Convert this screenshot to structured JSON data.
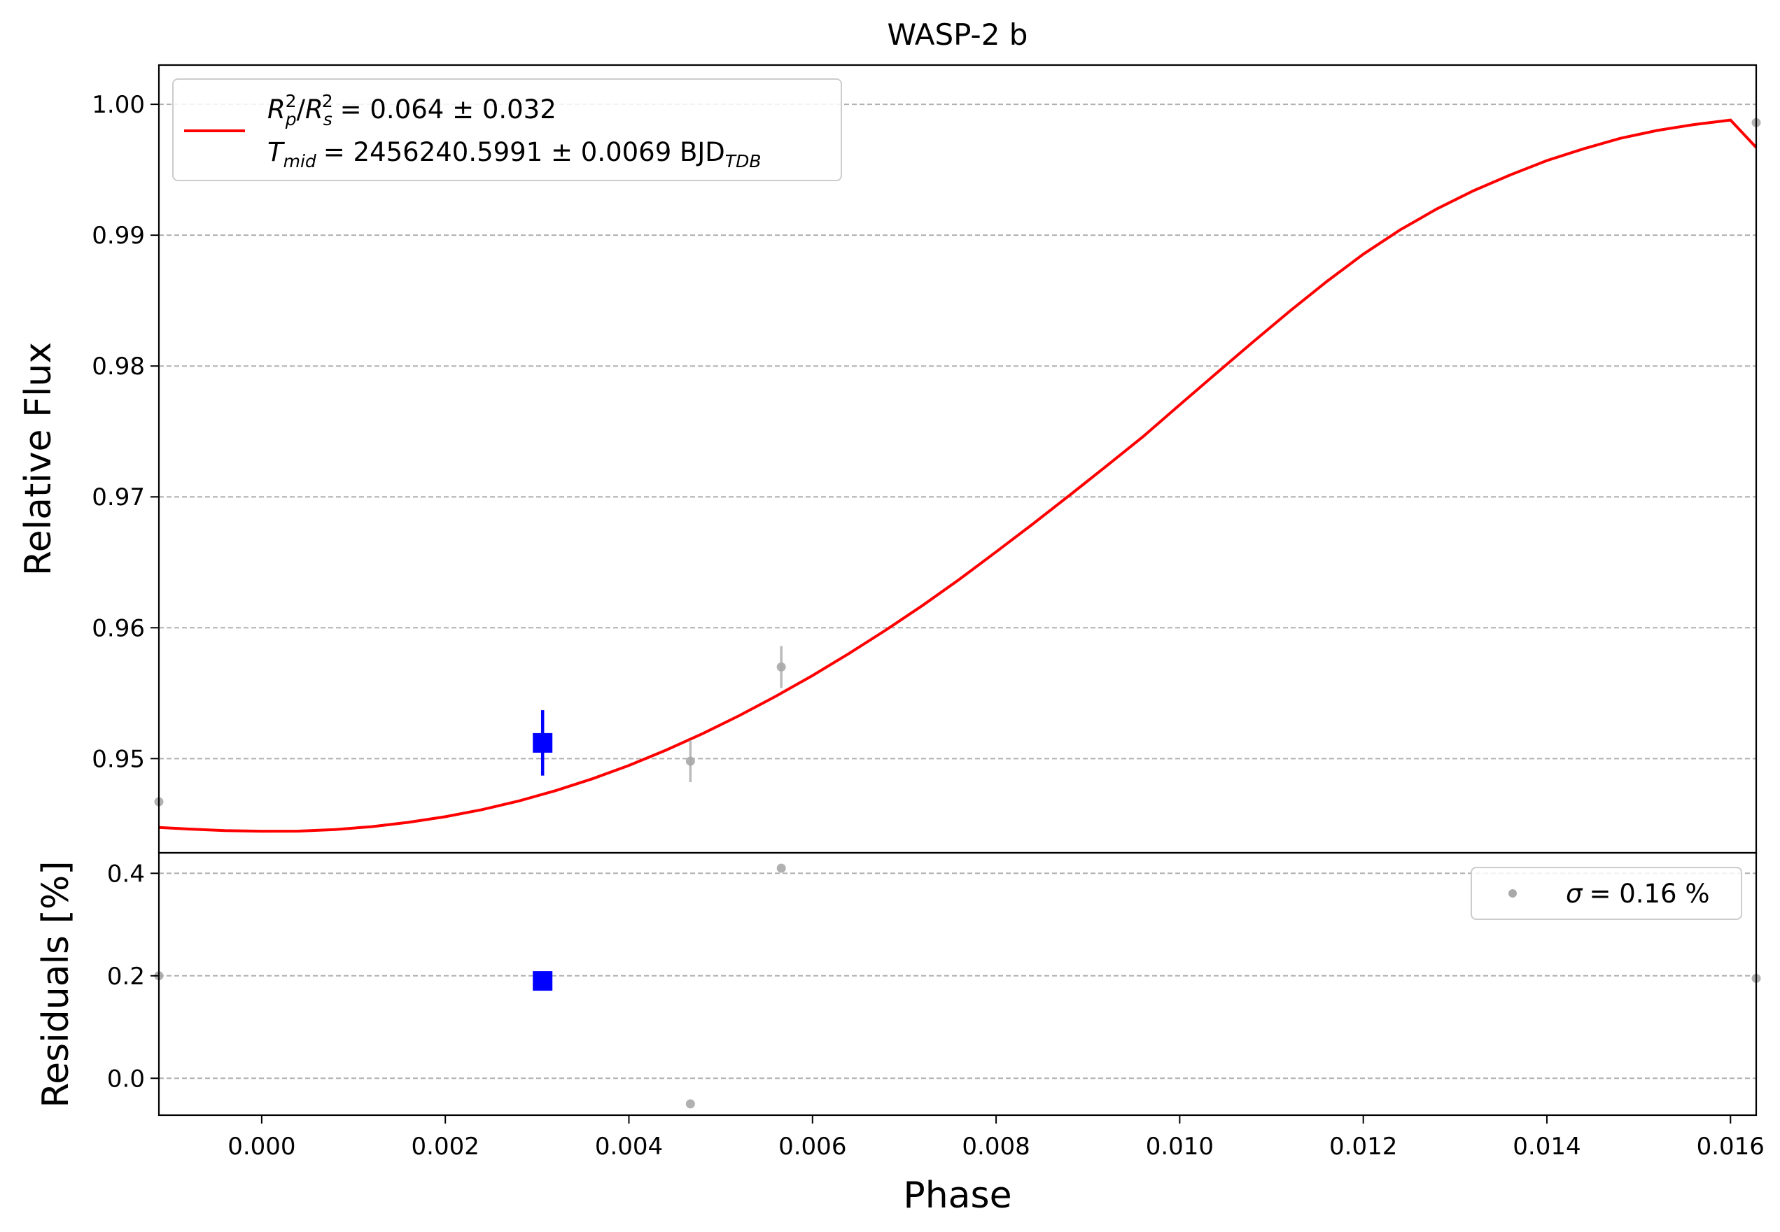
{
  "chart_data": {
    "type": "scatter",
    "title": "WASP-2 b",
    "xlabel": "Phase",
    "top_panel": {
      "ylabel": "Relative Flux",
      "xlim": [
        -0.00112,
        0.01628
      ],
      "ylim": [
        0.9428,
        1.003
      ],
      "yticks": [
        0.95,
        0.96,
        0.97,
        0.98,
        0.99,
        1.0
      ],
      "ytick_labels": [
        "0.95",
        "0.96",
        "0.97",
        "0.98",
        "0.99",
        "1.00"
      ],
      "grid": "y-dashed",
      "legend_location": "upper-left",
      "legend": {
        "line_color": "#ff0000",
        "rp_label": "R",
        "rp_sub": "p",
        "rp_sup": "2",
        "rs_label": "R",
        "rs_sub": "s",
        "rs_sup": "2",
        "rp_rs_value": "= 0.064 ± 0.032",
        "tmid_label": "T",
        "tmid_sub": "mid",
        "tmid_value": "= 2456240.5991 ± 0.0069 BJD",
        "tmid_unit_sub": "TDB"
      },
      "model_curve": {
        "color": "#ff0000",
        "points": [
          [
            -0.00112,
            0.94474
          ],
          [
            -0.0008,
            0.94462
          ],
          [
            -0.0004,
            0.9445
          ],
          [
            0.0,
            0.94445
          ],
          [
            0.0004,
            0.94446
          ],
          [
            0.0008,
            0.94458
          ],
          [
            0.0012,
            0.9448
          ],
          [
            0.0016,
            0.94513
          ],
          [
            0.002,
            0.94556
          ],
          [
            0.0024,
            0.9461
          ],
          [
            0.0028,
            0.94676
          ],
          [
            0.0032,
            0.94755
          ],
          [
            0.0036,
            0.94845
          ],
          [
            0.004,
            0.94948
          ],
          [
            0.0044,
            0.95063
          ],
          [
            0.0048,
            0.9519
          ],
          [
            0.0052,
            0.95328
          ],
          [
            0.0056,
            0.95476
          ],
          [
            0.006,
            0.95635
          ],
          [
            0.0064,
            0.95804
          ],
          [
            0.0068,
            0.95983
          ],
          [
            0.0072,
            0.96171
          ],
          [
            0.0076,
            0.9637
          ],
          [
            0.008,
            0.9658
          ],
          [
            0.0084,
            0.96793
          ],
          [
            0.0088,
            0.97012
          ],
          [
            0.0092,
            0.97235
          ],
          [
            0.0096,
            0.9746
          ],
          [
            0.01,
            0.97704
          ],
          [
            0.0104,
            0.97945
          ],
          [
            0.0108,
            0.98185
          ],
          [
            0.0112,
            0.9842
          ],
          [
            0.0116,
            0.98645
          ],
          [
            0.012,
            0.98855
          ],
          [
            0.0124,
            0.9904
          ],
          [
            0.0128,
            0.992
          ],
          [
            0.0132,
            0.9934
          ],
          [
            0.0136,
            0.9946
          ],
          [
            0.014,
            0.9957
          ],
          [
            0.0144,
            0.9966
          ],
          [
            0.0148,
            0.9974
          ],
          [
            0.0152,
            0.998
          ],
          [
            0.0156,
            0.99845
          ],
          [
            0.016,
            0.9988
          ],
          [
            0.01628,
            0.9967
          ]
        ]
      },
      "raw_points": {
        "color": "#a9a9a9",
        "points": [
          {
            "x": -0.00112,
            "y": 0.9467,
            "err": 0.0
          },
          {
            "x": 0.00467,
            "y": 0.9498,
            "err": 0.0016
          },
          {
            "x": 0.00566,
            "y": 0.957,
            "err": 0.0016
          },
          {
            "x": 0.01628,
            "y": 0.9986,
            "err": 0.0
          }
        ]
      },
      "binned_points": {
        "color": "#0000ff",
        "points": [
          {
            "x": 0.00306,
            "y": 0.9512,
            "err": 0.0025
          }
        ]
      }
    },
    "bottom_panel": {
      "ylabel": "Residuals [%]",
      "xlim": [
        -0.00112,
        0.01628
      ],
      "ylim": [
        -0.072,
        0.44
      ],
      "yticks": [
        0.0,
        0.2,
        0.4
      ],
      "ytick_labels": [
        "0.0",
        "0.2",
        "0.4"
      ],
      "grid": "y-dashed",
      "legend_location": "upper-right",
      "legend": {
        "marker_color": "#a9a9a9",
        "sigma_symbol": "σ",
        "sigma_value": "= 0.16 %"
      },
      "raw_points": {
        "color": "#a9a9a9",
        "points": [
          {
            "x": -0.00112,
            "y": 0.2
          },
          {
            "x": 0.00467,
            "y": -0.05
          },
          {
            "x": 0.00566,
            "y": 0.41
          },
          {
            "x": 0.01628,
            "y": 0.195
          }
        ]
      },
      "binned_points": {
        "color": "#0000ff",
        "points": [
          {
            "x": 0.00306,
            "y": 0.19
          }
        ]
      }
    },
    "xticks": [
      0.0,
      0.002,
      0.004,
      0.006,
      0.008,
      0.01,
      0.012,
      0.014,
      0.016
    ],
    "xtick_labels": [
      "0.000",
      "0.002",
      "0.004",
      "0.006",
      "0.008",
      "0.010",
      "0.012",
      "0.014",
      "0.016"
    ]
  }
}
